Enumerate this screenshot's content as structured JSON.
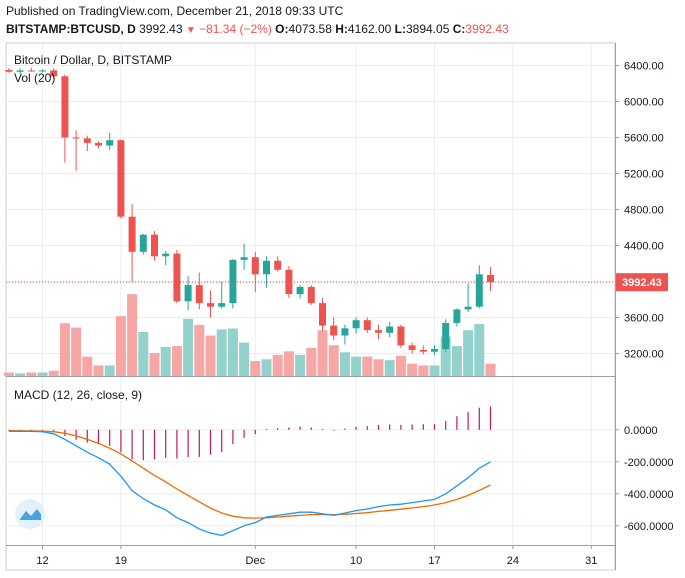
{
  "header": {
    "published": "Published on TradingView.com, December 21, 2018 09:33 UTC",
    "symbol": "BITSTAMP:BTCUSD, D",
    "last": "3992.43",
    "change": "−81.34 (−2%)",
    "o_label": "O:",
    "o_value": "4073.58",
    "h_label": "H:",
    "h_value": "4162.00",
    "l_label": "L:",
    "l_value": "3894.05",
    "c_label": "C:",
    "c_value": "3992.43"
  },
  "chart_data": [
    {
      "type": "candlestick",
      "title": "Bitcoin / Dollar, D, BITSTAMP",
      "volume_label": "Vol (20)",
      "ylim": [
        2950,
        6650
      ],
      "y_ticks": [
        3200,
        3600,
        4000,
        4400,
        4800,
        5200,
        5600,
        6000,
        6400
      ],
      "y_tick_labels": [
        "3200.00",
        "3600.00",
        "4000.00",
        "4400.00",
        "4800.00",
        "5200.00",
        "5600.00",
        "6000.00",
        "6400.00"
      ],
      "last_price": 3992.43,
      "last_price_label": "3992.43",
      "x_ticks": [
        {
          "day": 0,
          "label": "12"
        },
        {
          "day": 7,
          "label": "19"
        },
        {
          "day": 19,
          "label": "Dec"
        },
        {
          "day": 28,
          "label": "10"
        },
        {
          "day": 35,
          "label": "17"
        },
        {
          "day": 42,
          "label": "24"
        },
        {
          "day": 49,
          "label": "31"
        }
      ],
      "colors": {
        "up": "#26a69a",
        "down": "#ef5350",
        "up_vol": "#93d2cc",
        "down_vol": "#f5a6a5",
        "grid": "#e9eef3"
      },
      "candles": [
        {
          "day": -3,
          "o": 6350,
          "h": 6370,
          "l": 6320,
          "c": 6330,
          "v": 0.04
        },
        {
          "day": -2,
          "o": 6330,
          "h": 6365,
          "l": 6315,
          "c": 6345,
          "v": 0.03
        },
        {
          "day": -1,
          "o": 6345,
          "h": 6375,
          "l": 6330,
          "c": 6340,
          "v": 0.04
        },
        {
          "day": 0,
          "o": 6340,
          "h": 6360,
          "l": 6325,
          "c": 6345,
          "v": 0.04
        },
        {
          "day": 1,
          "o": 6345,
          "h": 6370,
          "l": 6260,
          "c": 6280,
          "v": 0.06
        },
        {
          "day": 2,
          "o": 6280,
          "h": 6300,
          "l": 5320,
          "c": 5600,
          "v": 0.6
        },
        {
          "day": 3,
          "o": 5600,
          "h": 5680,
          "l": 5230,
          "c": 5590,
          "v": 0.55
        },
        {
          "day": 4,
          "o": 5590,
          "h": 5620,
          "l": 5450,
          "c": 5540,
          "v": 0.22
        },
        {
          "day": 5,
          "o": 5540,
          "h": 5560,
          "l": 5480,
          "c": 5510,
          "v": 0.12
        },
        {
          "day": 6,
          "o": 5510,
          "h": 5650,
          "l": 5460,
          "c": 5570,
          "v": 0.12
        },
        {
          "day": 7,
          "o": 5570,
          "h": 5580,
          "l": 4700,
          "c": 4720,
          "v": 0.68
        },
        {
          "day": 8,
          "o": 4720,
          "h": 4860,
          "l": 4000,
          "c": 4330,
          "v": 0.93
        },
        {
          "day": 9,
          "o": 4330,
          "h": 4530,
          "l": 4300,
          "c": 4520,
          "v": 0.5
        },
        {
          "day": 10,
          "o": 4520,
          "h": 4560,
          "l": 4230,
          "c": 4280,
          "v": 0.26
        },
        {
          "day": 11,
          "o": 4280,
          "h": 4340,
          "l": 4180,
          "c": 4310,
          "v": 0.33
        },
        {
          "day": 12,
          "o": 4310,
          "h": 4350,
          "l": 3760,
          "c": 3780,
          "v": 0.34
        },
        {
          "day": 13,
          "o": 3780,
          "h": 4060,
          "l": 3680,
          "c": 3960,
          "v": 0.65
        },
        {
          "day": 14,
          "o": 3960,
          "h": 4100,
          "l": 3690,
          "c": 3760,
          "v": 0.58
        },
        {
          "day": 15,
          "o": 3760,
          "h": 3900,
          "l": 3600,
          "c": 3720,
          "v": 0.46
        },
        {
          "day": 16,
          "o": 3720,
          "h": 4000,
          "l": 3700,
          "c": 3760,
          "v": 0.53
        },
        {
          "day": 17,
          "o": 3760,
          "h": 4250,
          "l": 3700,
          "c": 4240,
          "v": 0.54
        },
        {
          "day": 18,
          "o": 4240,
          "h": 4420,
          "l": 4130,
          "c": 4270,
          "v": 0.38
        },
        {
          "day": 19,
          "o": 4270,
          "h": 4330,
          "l": 3880,
          "c": 4080,
          "v": 0.17
        },
        {
          "day": 20,
          "o": 4080,
          "h": 4280,
          "l": 3930,
          "c": 4230,
          "v": 0.19
        },
        {
          "day": 21,
          "o": 4230,
          "h": 4280,
          "l": 4110,
          "c": 4130,
          "v": 0.24
        },
        {
          "day": 22,
          "o": 4130,
          "h": 4170,
          "l": 3820,
          "c": 3860,
          "v": 0.28
        },
        {
          "day": 23,
          "o": 3860,
          "h": 3960,
          "l": 3810,
          "c": 3940,
          "v": 0.24
        },
        {
          "day": 24,
          "o": 3940,
          "h": 3960,
          "l": 3740,
          "c": 3760,
          "v": 0.32
        },
        {
          "day": 25,
          "o": 3760,
          "h": 3820,
          "l": 3450,
          "c": 3510,
          "v": 0.52
        },
        {
          "day": 26,
          "o": 3510,
          "h": 3600,
          "l": 3350,
          "c": 3400,
          "v": 0.35
        },
        {
          "day": 27,
          "o": 3400,
          "h": 3520,
          "l": 3300,
          "c": 3480,
          "v": 0.27
        },
        {
          "day": 28,
          "o": 3480,
          "h": 3600,
          "l": 3420,
          "c": 3570,
          "v": 0.22
        },
        {
          "day": 29,
          "o": 3570,
          "h": 3600,
          "l": 3430,
          "c": 3460,
          "v": 0.22
        },
        {
          "day": 30,
          "o": 3460,
          "h": 3520,
          "l": 3360,
          "c": 3430,
          "v": 0.19
        },
        {
          "day": 31,
          "o": 3430,
          "h": 3550,
          "l": 3380,
          "c": 3500,
          "v": 0.18
        },
        {
          "day": 32,
          "o": 3500,
          "h": 3520,
          "l": 3260,
          "c": 3290,
          "v": 0.23
        },
        {
          "day": 33,
          "o": 3290,
          "h": 3320,
          "l": 3200,
          "c": 3240,
          "v": 0.14
        },
        {
          "day": 34,
          "o": 3240,
          "h": 3290,
          "l": 3190,
          "c": 3220,
          "v": 0.12
        },
        {
          "day": 35,
          "o": 3220,
          "h": 3290,
          "l": 3180,
          "c": 3250,
          "v": 0.12
        },
        {
          "day": 36,
          "o": 3250,
          "h": 3580,
          "l": 3220,
          "c": 3540,
          "v": 0.45
        },
        {
          "day": 37,
          "o": 3540,
          "h": 3700,
          "l": 3500,
          "c": 3690,
          "v": 0.34
        },
        {
          "day": 38,
          "o": 3690,
          "h": 3980,
          "l": 3660,
          "c": 3720,
          "v": 0.52
        },
        {
          "day": 39,
          "o": 3720,
          "h": 4180,
          "l": 3700,
          "c": 4080,
          "v": 0.59
        },
        {
          "day": 40,
          "o": 4073.58,
          "h": 4162,
          "l": 3894.05,
          "c": 3992.43,
          "v": 0.14
        }
      ]
    },
    {
      "type": "macd",
      "title": "MACD (12, 26, close, 9)",
      "ylim": [
        -720,
        330
      ],
      "y_ticks": [
        0,
        -200,
        -400,
        -600
      ],
      "y_tick_labels": [
        "0.0000",
        "-200.0000",
        "-400.0000",
        "-600.0000"
      ],
      "x_ticks": [
        0,
        7,
        19,
        28,
        35,
        42,
        49
      ],
      "colors": {
        "macd": "#2196f3",
        "signal": "#ef6c00",
        "histogram": "#c2185b"
      },
      "macd": [
        {
          "day": -3,
          "v": -10
        },
        {
          "day": -2,
          "v": -10
        },
        {
          "day": -1,
          "v": -10
        },
        {
          "day": 0,
          "v": -12
        },
        {
          "day": 1,
          "v": -25
        },
        {
          "day": 2,
          "v": -60
        },
        {
          "day": 3,
          "v": -100
        },
        {
          "day": 4,
          "v": -140
        },
        {
          "day": 5,
          "v": -175
        },
        {
          "day": 6,
          "v": -215
        },
        {
          "day": 7,
          "v": -290
        },
        {
          "day": 8,
          "v": -380
        },
        {
          "day": 9,
          "v": -430
        },
        {
          "day": 10,
          "v": -470
        },
        {
          "day": 11,
          "v": -500
        },
        {
          "day": 12,
          "v": -550
        },
        {
          "day": 13,
          "v": -580
        },
        {
          "day": 14,
          "v": -620
        },
        {
          "day": 15,
          "v": -645
        },
        {
          "day": 16,
          "v": -660
        },
        {
          "day": 17,
          "v": -630
        },
        {
          "day": 18,
          "v": -600
        },
        {
          "day": 19,
          "v": -580
        },
        {
          "day": 20,
          "v": -545
        },
        {
          "day": 21,
          "v": -535
        },
        {
          "day": 22,
          "v": -525
        },
        {
          "day": 23,
          "v": -515
        },
        {
          "day": 24,
          "v": -515
        },
        {
          "day": 25,
          "v": -525
        },
        {
          "day": 26,
          "v": -535
        },
        {
          "day": 27,
          "v": -520
        },
        {
          "day": 28,
          "v": -505
        },
        {
          "day": 29,
          "v": -495
        },
        {
          "day": 30,
          "v": -480
        },
        {
          "day": 31,
          "v": -470
        },
        {
          "day": 32,
          "v": -465
        },
        {
          "day": 33,
          "v": -455
        },
        {
          "day": 34,
          "v": -445
        },
        {
          "day": 35,
          "v": -435
        },
        {
          "day": 36,
          "v": -400
        },
        {
          "day": 37,
          "v": -350
        },
        {
          "day": 38,
          "v": -300
        },
        {
          "day": 39,
          "v": -240
        },
        {
          "day": 40,
          "v": -200
        }
      ],
      "signal": [
        {
          "day": -3,
          "v": -5
        },
        {
          "day": -2,
          "v": -6
        },
        {
          "day": -1,
          "v": -7
        },
        {
          "day": 0,
          "v": -8
        },
        {
          "day": 1,
          "v": -12
        },
        {
          "day": 2,
          "v": -22
        },
        {
          "day": 3,
          "v": -38
        },
        {
          "day": 4,
          "v": -60
        },
        {
          "day": 5,
          "v": -85
        },
        {
          "day": 6,
          "v": -115
        },
        {
          "day": 7,
          "v": -150
        },
        {
          "day": 8,
          "v": -195
        },
        {
          "day": 9,
          "v": -240
        },
        {
          "day": 10,
          "v": -285
        },
        {
          "day": 11,
          "v": -325
        },
        {
          "day": 12,
          "v": -370
        },
        {
          "day": 13,
          "v": -410
        },
        {
          "day": 14,
          "v": -450
        },
        {
          "day": 15,
          "v": -490
        },
        {
          "day": 16,
          "v": -520
        },
        {
          "day": 17,
          "v": -540
        },
        {
          "day": 18,
          "v": -550
        },
        {
          "day": 19,
          "v": -552
        },
        {
          "day": 20,
          "v": -550
        },
        {
          "day": 21,
          "v": -545
        },
        {
          "day": 22,
          "v": -540
        },
        {
          "day": 23,
          "v": -535
        },
        {
          "day": 24,
          "v": -530
        },
        {
          "day": 25,
          "v": -530
        },
        {
          "day": 26,
          "v": -530
        },
        {
          "day": 27,
          "v": -528
        },
        {
          "day": 28,
          "v": -523
        },
        {
          "day": 29,
          "v": -518
        },
        {
          "day": 30,
          "v": -510
        },
        {
          "day": 31,
          "v": -503
        },
        {
          "day": 32,
          "v": -496
        },
        {
          "day": 33,
          "v": -488
        },
        {
          "day": 34,
          "v": -480
        },
        {
          "day": 35,
          "v": -470
        },
        {
          "day": 36,
          "v": -455
        },
        {
          "day": 37,
          "v": -435
        },
        {
          "day": 38,
          "v": -410
        },
        {
          "day": 39,
          "v": -378
        },
        {
          "day": 40,
          "v": -345
        }
      ],
      "histogram": [
        {
          "day": -3,
          "v": -5
        },
        {
          "day": -2,
          "v": -4
        },
        {
          "day": -1,
          "v": -3
        },
        {
          "day": 0,
          "v": -4
        },
        {
          "day": 1,
          "v": -13
        },
        {
          "day": 2,
          "v": -38
        },
        {
          "day": 3,
          "v": -62
        },
        {
          "day": 4,
          "v": -80
        },
        {
          "day": 5,
          "v": -90
        },
        {
          "day": 6,
          "v": -100
        },
        {
          "day": 7,
          "v": -140
        },
        {
          "day": 8,
          "v": -185
        },
        {
          "day": 9,
          "v": -190
        },
        {
          "day": 10,
          "v": -185
        },
        {
          "day": 11,
          "v": -175
        },
        {
          "day": 12,
          "v": -180
        },
        {
          "day": 13,
          "v": -170
        },
        {
          "day": 14,
          "v": -170
        },
        {
          "day": 15,
          "v": -155
        },
        {
          "day": 16,
          "v": -140
        },
        {
          "day": 17,
          "v": -90
        },
        {
          "day": 18,
          "v": -50
        },
        {
          "day": 19,
          "v": -28
        },
        {
          "day": 20,
          "v": 5
        },
        {
          "day": 21,
          "v": 10
        },
        {
          "day": 22,
          "v": 15
        },
        {
          "day": 23,
          "v": 20
        },
        {
          "day": 24,
          "v": 15
        },
        {
          "day": 25,
          "v": 5
        },
        {
          "day": 26,
          "v": -5
        },
        {
          "day": 27,
          "v": 8
        },
        {
          "day": 28,
          "v": 18
        },
        {
          "day": 29,
          "v": 23
        },
        {
          "day": 30,
          "v": 30
        },
        {
          "day": 31,
          "v": 33
        },
        {
          "day": 32,
          "v": 31
        },
        {
          "day": 33,
          "v": 33
        },
        {
          "day": 34,
          "v": 35
        },
        {
          "day": 35,
          "v": 35
        },
        {
          "day": 36,
          "v": 55
        },
        {
          "day": 37,
          "v": 85
        },
        {
          "day": 38,
          "v": 110
        },
        {
          "day": 39,
          "v": 138
        },
        {
          "day": 40,
          "v": 145
        }
      ]
    }
  ]
}
